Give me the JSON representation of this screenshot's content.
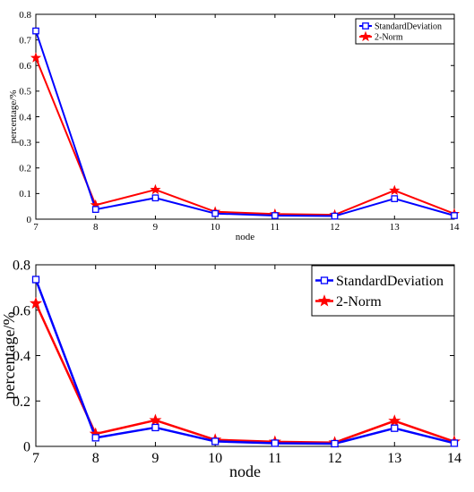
{
  "chart_data": [
    {
      "type": "line",
      "xlabel": "node",
      "ylabel": "percentage/%",
      "x": [
        7,
        8,
        9,
        10,
        11,
        12,
        13,
        14
      ],
      "xlim": [
        7,
        14
      ],
      "ylim": [
        0,
        0.8
      ],
      "x_ticks": [
        "7",
        "8",
        "9",
        "10",
        "11",
        "12",
        "13",
        "14"
      ],
      "y_ticks": [
        "0",
        "0.1",
        "0.2",
        "0.3",
        "0.4",
        "0.5",
        "0.6",
        "0.7",
        "0.8"
      ],
      "legend_position": "top-right",
      "series": [
        {
          "name": "StandardDeviation",
          "color": "#0000ff",
          "marker": "square",
          "values": [
            0.735,
            0.038,
            0.083,
            0.022,
            0.014,
            0.012,
            0.08,
            0.014
          ]
        },
        {
          "name": "2-Norm",
          "color": "#ff0000",
          "marker": "star",
          "values": [
            0.63,
            0.055,
            0.115,
            0.029,
            0.02,
            0.017,
            0.112,
            0.021
          ]
        }
      ]
    },
    {
      "type": "line",
      "xlabel": "node",
      "ylabel": "percentage/%",
      "x": [
        7,
        8,
        9,
        10,
        11,
        12,
        13,
        14
      ],
      "xlim": [
        7,
        14
      ],
      "ylim": [
        0,
        0.8
      ],
      "x_ticks": [
        "7",
        "8",
        "9",
        "10",
        "11",
        "12",
        "13",
        "14"
      ],
      "y_ticks": [
        "0",
        "0.2",
        "0.4",
        "0.6",
        "0.8"
      ],
      "legend_position": "top-right",
      "series": [
        {
          "name": "StandardDeviation",
          "color": "#0000ff",
          "marker": "square",
          "values": [
            0.735,
            0.038,
            0.083,
            0.022,
            0.014,
            0.012,
            0.08,
            0.014
          ]
        },
        {
          "name": "2-Norm",
          "color": "#ff0000",
          "marker": "star",
          "values": [
            0.63,
            0.055,
            0.115,
            0.029,
            0.02,
            0.017,
            0.112,
            0.021
          ]
        }
      ]
    }
  ]
}
